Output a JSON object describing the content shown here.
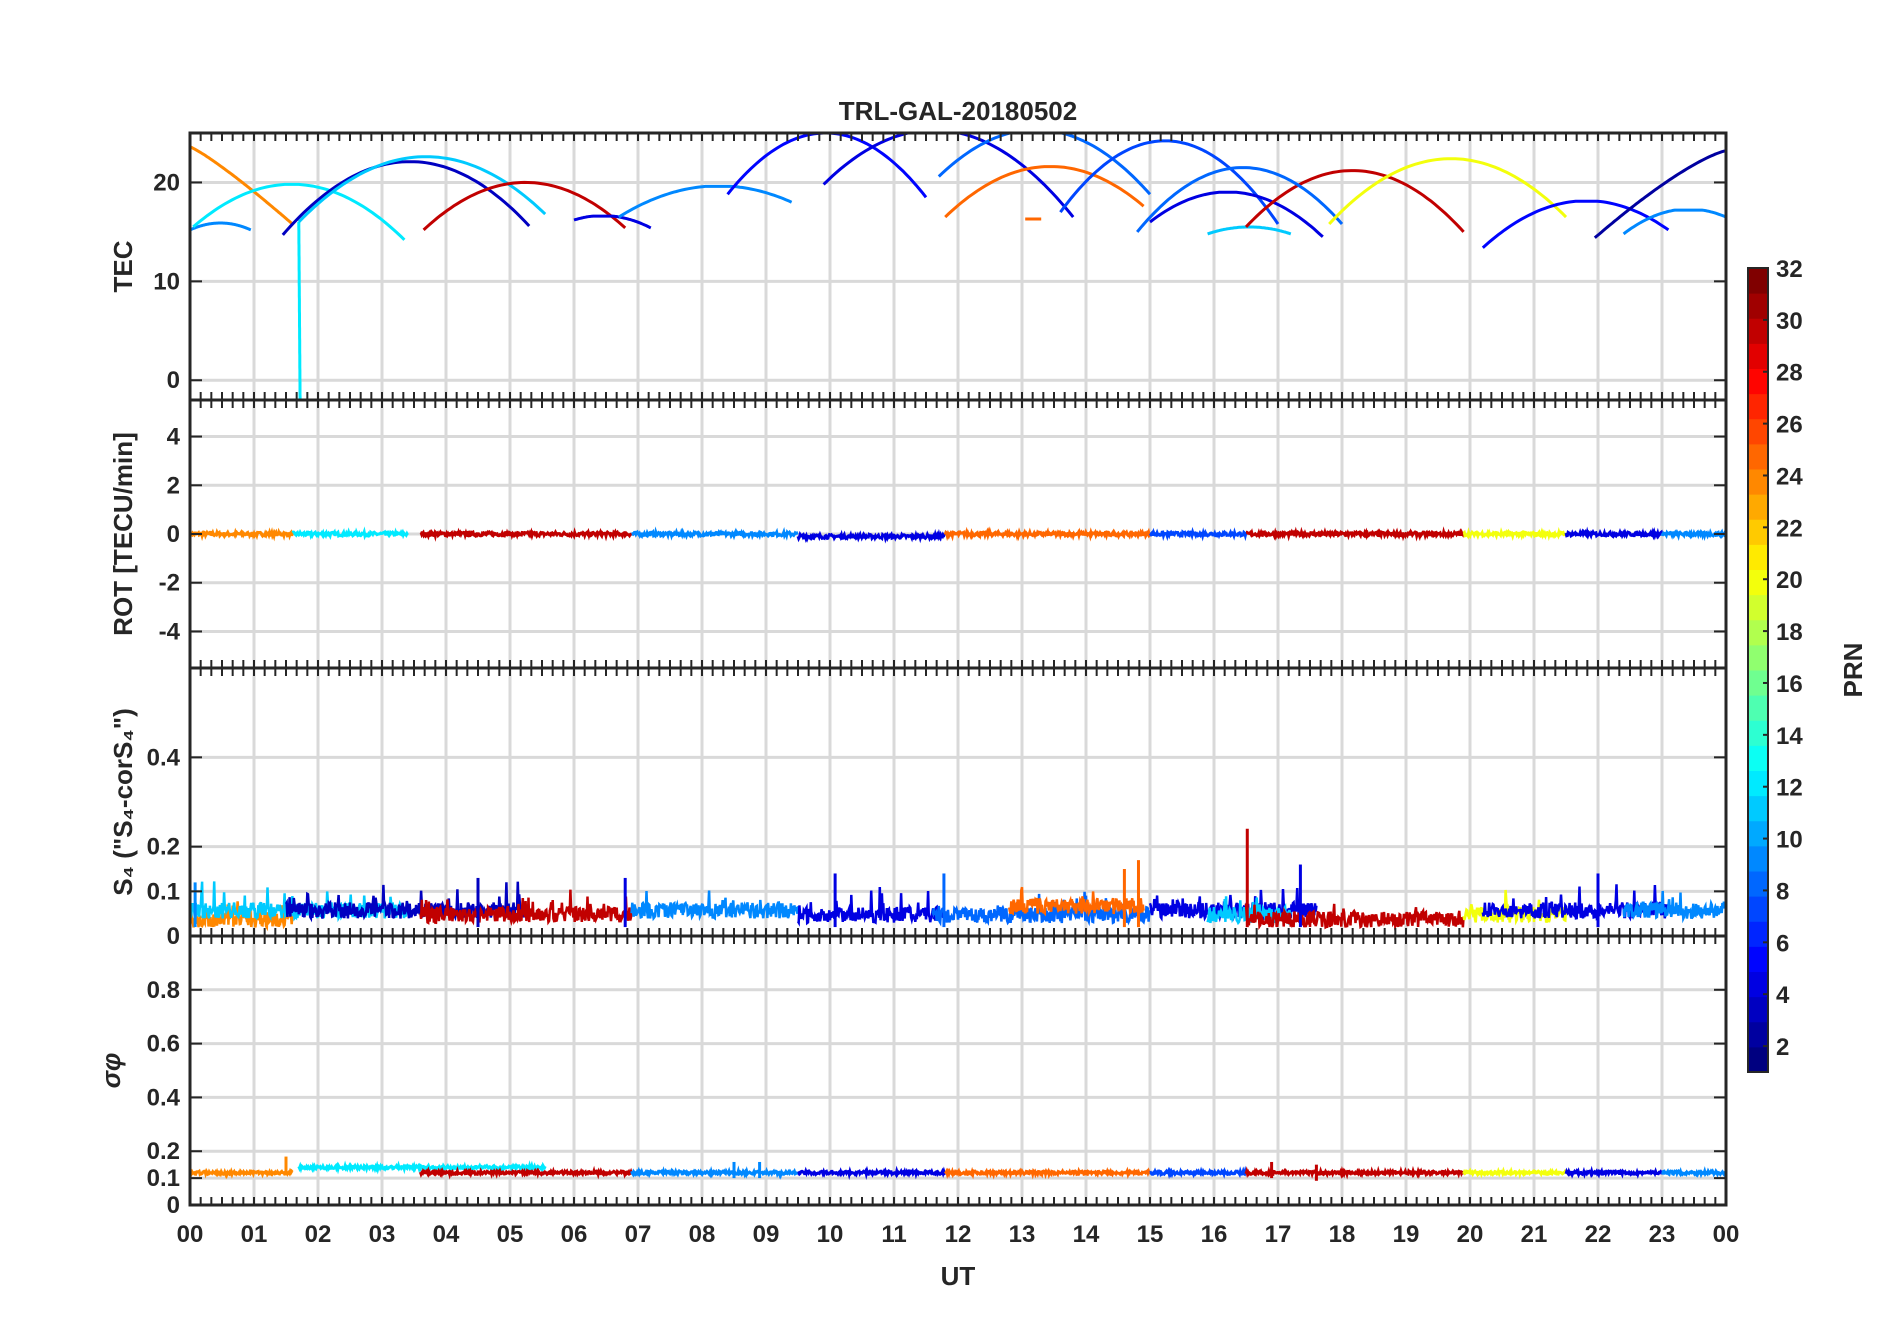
{
  "chart_data": {
    "type": "line",
    "title": "TRL-GAL-20180502",
    "xlabel": "UT",
    "x_range_hours": [
      0,
      24
    ],
    "x_tick_labels": [
      "00",
      "01",
      "02",
      "03",
      "04",
      "05",
      "06",
      "07",
      "08",
      "09",
      "10",
      "11",
      "12",
      "13",
      "14",
      "15",
      "16",
      "17",
      "18",
      "19",
      "20",
      "21",
      "22",
      "23",
      "00"
    ],
    "grid": true,
    "colorbar": {
      "label": "PRN",
      "range": [
        1,
        32
      ],
      "tick_labels": [
        "2",
        "4",
        "6",
        "8",
        "10",
        "12",
        "14",
        "16",
        "18",
        "20",
        "22",
        "24",
        "26",
        "28",
        "30",
        "32"
      ],
      "colormap": "jet",
      "placement": "right"
    },
    "panels": [
      {
        "id": "tec",
        "ylabel": "TEC",
        "ylim": [
          -2,
          25
        ],
        "y_ticks": [
          0,
          10,
          20
        ],
        "y_tick_labels": [
          "0",
          "10",
          "20"
        ],
        "series": [
          {
            "prn": 24,
            "x": [
              0.0,
              1.6
            ],
            "y": [
              23.6,
              15.8
            ],
            "shape": "decline"
          },
          {
            "prn": 9,
            "x": [
              0.0,
              0.95
            ],
            "y": [
              15.2,
              15.2
            ],
            "shape": "arc",
            "peak": 15.9
          },
          {
            "prn": 12,
            "x": [
              0.05,
              3.35
            ],
            "y": [
              15.5,
              14.2
            ],
            "shape": "arc",
            "peak": 19.8
          },
          {
            "prn": 12,
            "x": [
              1.7,
              1.72
            ],
            "y": [
              16.0,
              -2.0
            ],
            "shape": "drop"
          },
          {
            "prn": 3,
            "x": [
              1.45,
              5.3
            ],
            "y": [
              14.7,
              15.6
            ],
            "shape": "arc",
            "peak": 22.1
          },
          {
            "prn": 11,
            "x": [
              1.7,
              5.55
            ],
            "y": [
              16.0,
              16.8
            ],
            "shape": "arc",
            "peak": 22.6
          },
          {
            "prn": 30,
            "x": [
              3.65,
              6.8
            ],
            "y": [
              15.2,
              15.4
            ],
            "shape": "arc",
            "peak": 20.0
          },
          {
            "prn": 4,
            "x": [
              6.0,
              7.2
            ],
            "y": [
              16.2,
              15.4
            ],
            "shape": "arc",
            "peak": 16.6
          },
          {
            "prn": 9,
            "x": [
              6.7,
              9.4
            ],
            "y": [
              16.5,
              18.0
            ],
            "shape": "arc",
            "peak": 19.6
          },
          {
            "prn": 5,
            "x": [
              8.4,
              11.5
            ],
            "y": [
              18.8,
              18.5
            ],
            "shape": "arc",
            "peak": 25.0
          },
          {
            "prn": 4,
            "x": [
              9.9,
              13.8
            ],
            "y": [
              19.8,
              16.5
            ],
            "shape": "arc",
            "peak": 25.2
          },
          {
            "prn": 8,
            "x": [
              11.7,
              15.0
            ],
            "y": [
              20.6,
              18.8
            ],
            "shape": "arc",
            "peak": 25.3
          },
          {
            "prn": 25,
            "x": [
              11.8,
              14.9
            ],
            "y": [
              16.5,
              17.6
            ],
            "shape": "arc",
            "peak": 21.6
          },
          {
            "prn": 25,
            "x": [
              13.05,
              13.3
            ],
            "y": [
              16.3,
              16.3
            ],
            "shape": "flat"
          },
          {
            "prn": 7,
            "x": [
              13.6,
              17.0
            ],
            "y": [
              17.0,
              15.8
            ],
            "shape": "arc",
            "peak": 24.2
          },
          {
            "prn": 4,
            "x": [
              15.0,
              17.7
            ],
            "y": [
              16.0,
              14.5
            ],
            "shape": "arc",
            "peak": 19.0
          },
          {
            "prn": 11,
            "x": [
              15.9,
              17.2
            ],
            "y": [
              14.8,
              14.8
            ],
            "shape": "arc",
            "peak": 15.5
          },
          {
            "prn": 30,
            "x": [
              16.5,
              19.9
            ],
            "y": [
              15.5,
              15.0
            ],
            "shape": "arc",
            "peak": 21.2
          },
          {
            "prn": 8,
            "x": [
              14.8,
              18.0
            ],
            "y": [
              15.0,
              15.8
            ],
            "shape": "arc",
            "peak": 21.5
          },
          {
            "prn": 20,
            "x": [
              17.8,
              21.5
            ],
            "y": [
              15.8,
              16.5
            ],
            "shape": "arc",
            "peak": 22.4
          },
          {
            "prn": 5,
            "x": [
              20.2,
              23.1
            ],
            "y": [
              13.4,
              15.2
            ],
            "shape": "arc",
            "peak": 18.1
          },
          {
            "prn": 2,
            "x": [
              21.95,
              24.0
            ],
            "y": [
              14.4,
              23.2
            ],
            "shape": "rise"
          },
          {
            "prn": 9,
            "x": [
              22.4,
              24.0
            ],
            "y": [
              14.8,
              16.5
            ],
            "shape": "arc",
            "peak": 17.2
          }
        ]
      },
      {
        "id": "rot",
        "ylabel": "ROT [TECU/min]",
        "ylim": [
          -5.5,
          5.5
        ],
        "y_ticks": [
          -4,
          -2,
          0,
          2,
          4
        ],
        "y_tick_labels": [
          "-4",
          "-2",
          "0",
          "2",
          "4"
        ],
        "series": [
          {
            "prn": 24,
            "x": [
              0.0,
              1.6
            ],
            "level": 0.0
          },
          {
            "prn": 12,
            "x": [
              1.6,
              3.4
            ],
            "level": 0.0
          },
          {
            "prn": 30,
            "x": [
              3.6,
              6.9
            ],
            "level": 0.0
          },
          {
            "prn": 9,
            "x": [
              6.9,
              9.5
            ],
            "level": 0.0
          },
          {
            "prn": 4,
            "x": [
              9.5,
              11.8
            ],
            "level": -0.1
          },
          {
            "prn": 25,
            "x": [
              11.8,
              15.0
            ],
            "level": 0.0
          },
          {
            "prn": 7,
            "x": [
              15.0,
              16.5
            ],
            "level": 0.0
          },
          {
            "prn": 30,
            "x": [
              16.5,
              19.9
            ],
            "level": 0.0
          },
          {
            "prn": 20,
            "x": [
              19.9,
              21.5
            ],
            "level": 0.0
          },
          {
            "prn": 4,
            "x": [
              21.5,
              23.0
            ],
            "level": 0.0
          },
          {
            "prn": 9,
            "x": [
              23.0,
              24.0
            ],
            "level": 0.0
          }
        ]
      },
      {
        "id": "s4",
        "ylabel": "S₄ (\"S₄-corS₄\")",
        "ylim": [
          0,
          0.6
        ],
        "y_ticks": [
          0,
          0.1,
          0.2,
          0.4
        ],
        "y_tick_labels": [
          "0",
          "0.1",
          "0.2",
          "0.4"
        ],
        "series": [
          {
            "prn": 24,
            "x": [
              0.0,
              1.6
            ],
            "level": 0.03
          },
          {
            "prn": 11,
            "x": [
              0.0,
              3.4
            ],
            "level": 0.05
          },
          {
            "prn": 3,
            "x": [
              1.5,
              5.3
            ],
            "level": 0.05
          },
          {
            "prn": 30,
            "x": [
              3.6,
              6.9
            ],
            "level": 0.04
          },
          {
            "prn": 9,
            "x": [
              6.9,
              9.5
            ],
            "level": 0.05
          },
          {
            "prn": 4,
            "x": [
              9.5,
              11.8
            ],
            "level": 0.04
          },
          {
            "prn": 8,
            "x": [
              11.6,
              15.0
            ],
            "level": 0.04
          },
          {
            "prn": 25,
            "x": [
              12.8,
              14.9
            ],
            "level": 0.06
          },
          {
            "prn": 4,
            "x": [
              15.0,
              17.6
            ],
            "level": 0.05
          },
          {
            "prn": 11,
            "x": [
              15.9,
              17.2
            ],
            "level": 0.04
          },
          {
            "prn": 30,
            "x": [
              16.5,
              19.9
            ],
            "level": 0.03
          },
          {
            "prn": 20,
            "x": [
              19.9,
              21.5
            ],
            "level": 0.04
          },
          {
            "prn": 4,
            "x": [
              20.2,
              23.1
            ],
            "level": 0.05
          },
          {
            "prn": 9,
            "x": [
              22.4,
              24.0
            ],
            "level": 0.05
          }
        ],
        "spikes": [
          {
            "prn": 30,
            "x": 16.52,
            "y": 0.24
          },
          {
            "prn": 25,
            "x": 14.82,
            "y": 0.17
          },
          {
            "prn": 25,
            "x": 14.6,
            "y": 0.15
          },
          {
            "prn": 4,
            "x": 17.35,
            "y": 0.16
          },
          {
            "prn": 4,
            "x": 10.08,
            "y": 0.14
          },
          {
            "prn": 8,
            "x": 11.78,
            "y": 0.14
          },
          {
            "prn": 4,
            "x": 22.0,
            "y": 0.14
          },
          {
            "prn": 3,
            "x": 4.5,
            "y": 0.13
          },
          {
            "prn": 4,
            "x": 6.8,
            "y": 0.13
          },
          {
            "prn": 9,
            "x": 0.08,
            "y": 0.12
          }
        ]
      },
      {
        "id": "sigma_phi",
        "ylabel": "σφ",
        "ylim": [
          0,
          1.0
        ],
        "y_ticks": [
          0,
          0.1,
          0.2,
          0.4,
          0.6,
          0.8
        ],
        "y_tick_labels": [
          "0",
          "0.1",
          "0.2",
          "0.4",
          "0.6",
          "0.8"
        ],
        "series": [
          {
            "prn": 24,
            "x": [
              0.0,
              1.6
            ],
            "level": 0.12
          },
          {
            "prn": 12,
            "x": [
              1.7,
              5.55
            ],
            "level": 0.14
          },
          {
            "prn": 30,
            "x": [
              3.6,
              6.9
            ],
            "level": 0.12
          },
          {
            "prn": 9,
            "x": [
              6.9,
              9.5
            ],
            "level": 0.12
          },
          {
            "prn": 4,
            "x": [
              9.5,
              11.8
            ],
            "level": 0.12
          },
          {
            "prn": 25,
            "x": [
              11.8,
              15.0
            ],
            "level": 0.12
          },
          {
            "prn": 7,
            "x": [
              15.0,
              16.5
            ],
            "level": 0.12
          },
          {
            "prn": 30,
            "x": [
              16.5,
              19.9
            ],
            "level": 0.12
          },
          {
            "prn": 20,
            "x": [
              19.9,
              21.5
            ],
            "level": 0.12
          },
          {
            "prn": 4,
            "x": [
              21.5,
              23.0
            ],
            "level": 0.12
          },
          {
            "prn": 9,
            "x": [
              23.0,
              24.0
            ],
            "level": 0.12
          }
        ],
        "spikes": [
          {
            "prn": 24,
            "x": 1.5,
            "y": 0.18
          },
          {
            "prn": 30,
            "x": 16.9,
            "y": 0.16
          },
          {
            "prn": 30,
            "x": 17.6,
            "y": 0.15
          },
          {
            "prn": 9,
            "x": 8.5,
            "y": 0.16
          },
          {
            "prn": 9,
            "x": 8.9,
            "y": 0.16
          }
        ]
      }
    ]
  }
}
